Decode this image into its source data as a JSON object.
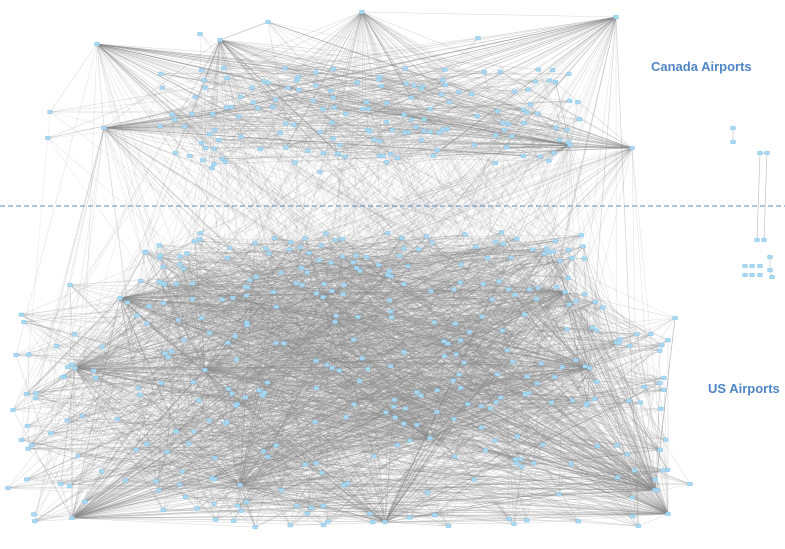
{
  "labels": {
    "canada": "Canada Airports",
    "us": "US Airports"
  },
  "colors": {
    "background": "#ffffff",
    "node": "#a9d8f2",
    "node_stroke": "#7fc0e6",
    "edge": "#8a8a8a",
    "divider": "#5b8fc7",
    "label": "#4f86c6"
  },
  "divider": {
    "style": "dashed"
  },
  "node_shape": "small-rounded-square",
  "seed": 20240611
}
